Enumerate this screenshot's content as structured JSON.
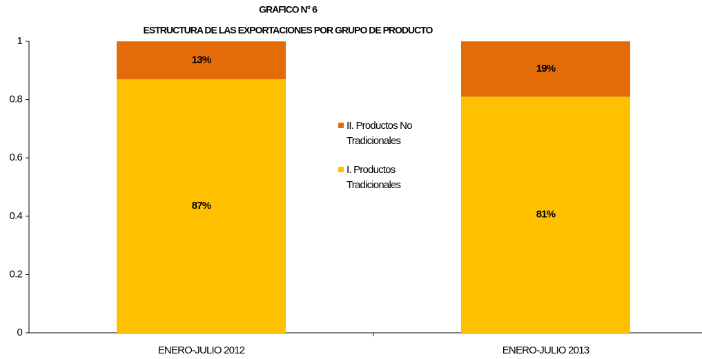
{
  "chart_data": {
    "type": "stacked_bar",
    "title": "GRAFICO N° 6",
    "subtitle": "ESTRUCTURA DE LAS EXPORTACIONES POR GRUPO DE PRODUCTO",
    "categories": [
      "ENERO-JULIO 2012",
      "ENERO-JULIO 2013"
    ],
    "series": [
      {
        "name": "I. Productos Tradicionales",
        "color": "#ffc000",
        "values": [
          0.87,
          0.81
        ],
        "value_labels": [
          "87%",
          "81%"
        ]
      },
      {
        "name": "II. Productos No Tradicionales",
        "color": "#e36c09",
        "values": [
          0.13,
          0.19
        ],
        "value_labels": [
          "13%",
          "19%"
        ]
      }
    ],
    "ylim": [
      0,
      1
    ],
    "yticks": [
      0,
      0.2,
      0.4,
      0.6,
      0.8,
      1
    ],
    "grid": false
  }
}
